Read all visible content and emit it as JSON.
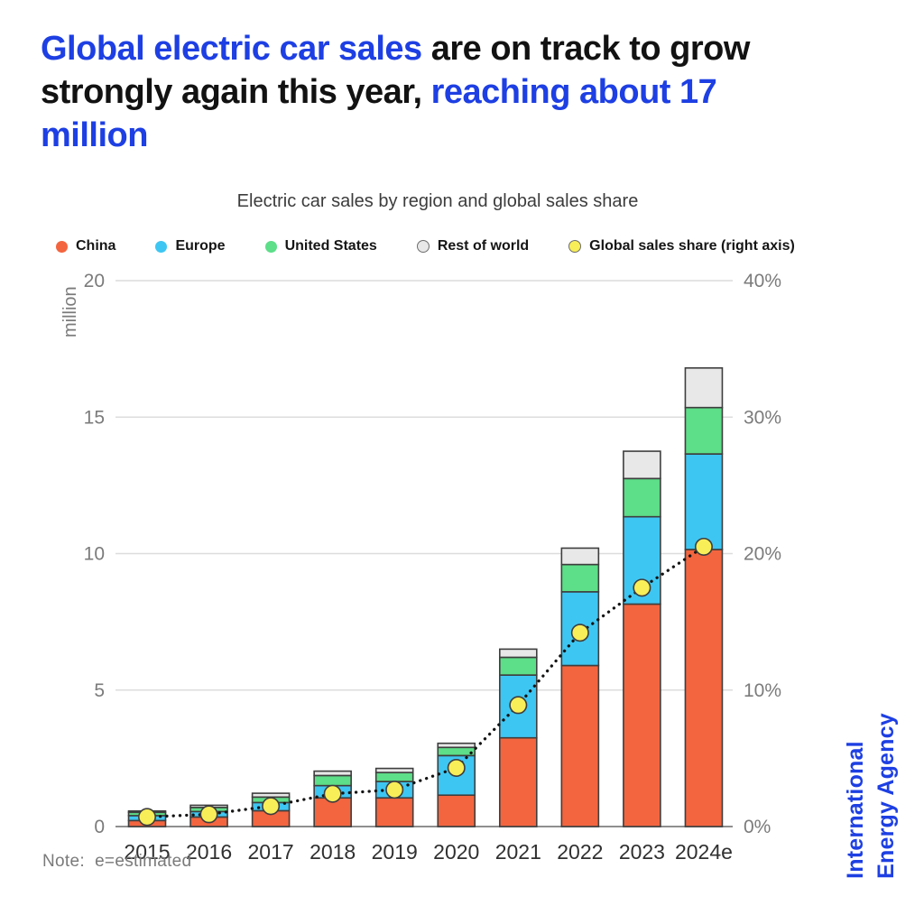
{
  "title": {
    "parts": [
      {
        "text": "Global electric car sales ",
        "color": "#1d3fe3"
      },
      {
        "text": "are on track to grow strongly again this year, ",
        "color": "#121212"
      },
      {
        "text": "reaching about 17 million",
        "color": "#1d3fe3"
      }
    ]
  },
  "chart": {
    "subtitle": "Electric car sales by region and global sales share",
    "left_axis_unit": "million",
    "left_ticks": [
      0,
      5,
      10,
      15,
      20
    ],
    "right_tick_labels": [
      "0%",
      "10%",
      "20%",
      "30%",
      "40%"
    ]
  },
  "chart_data": {
    "type": "bar",
    "stacked": true,
    "title": "Electric car sales by region and global sales share",
    "categories": [
      "2015",
      "2016",
      "2017",
      "2018",
      "2019",
      "2020",
      "2021",
      "2022",
      "2023",
      "2024e"
    ],
    "series": [
      {
        "name": "China",
        "color": "#f3653f",
        "marker_outline": false,
        "values": [
          0.22,
          0.35,
          0.58,
          1.05,
          1.05,
          1.15,
          3.25,
          5.9,
          8.15,
          10.15
        ]
      },
      {
        "name": "Europe",
        "color": "#3ec6f2",
        "marker_outline": false,
        "values": [
          0.18,
          0.2,
          0.3,
          0.45,
          0.6,
          1.45,
          2.3,
          2.7,
          3.2,
          3.5
        ]
      },
      {
        "name": "United States",
        "color": "#5dde88",
        "marker_outline": false,
        "values": [
          0.12,
          0.15,
          0.2,
          0.37,
          0.33,
          0.3,
          0.65,
          1.0,
          1.4,
          1.7
        ]
      },
      {
        "name": "Rest of world",
        "color": "#e8e8e8",
        "marker_outline": true,
        "values": [
          0.05,
          0.08,
          0.14,
          0.16,
          0.15,
          0.15,
          0.3,
          0.6,
          1.0,
          1.45
        ]
      }
    ],
    "share_line": {
      "name": "Global sales share (right axis)",
      "color": "#f8ee58",
      "marker_outline": true,
      "axis": "right",
      "values_percent": [
        0.7,
        0.9,
        1.5,
        2.4,
        2.7,
        4.3,
        8.9,
        14.2,
        17.5,
        20.5
      ]
    },
    "ylabel_left": "million",
    "ylim_left": [
      0,
      20
    ],
    "ylim_right_percent": [
      0,
      40
    ],
    "grid": "horizontal",
    "legend_position": "top"
  },
  "style": {
    "grid_color": "#dcdcdc",
    "baseline_color": "#8f8f8f",
    "bar_outline_color": "#3e3e3e",
    "tick_text_color": "#7b7b7b",
    "year_text_color": "#303030",
    "dotted_line_color": "#141414"
  },
  "note": "Note:  e=estimated",
  "brand": {
    "line1": "International",
    "line2": "Energy Agency",
    "color": "#1d3fe3"
  }
}
